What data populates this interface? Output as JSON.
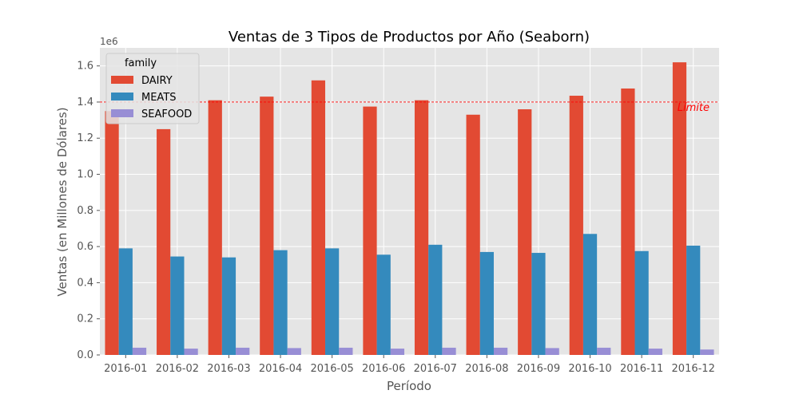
{
  "chart_data": {
    "type": "bar",
    "title": "Ventas de 3 Tipos de Productos por Año (Seaborn)",
    "xlabel": "Período",
    "ylabel": "Ventas (en Millones de Dólares)",
    "y_offset_label": "1e6",
    "ylim": [
      0,
      1.7
    ],
    "yticks": [
      0.0,
      0.2,
      0.4,
      0.6,
      0.8,
      1.0,
      1.2,
      1.4,
      1.6
    ],
    "ytick_labels": [
      "0.0",
      "0.2",
      "0.4",
      "0.6",
      "0.8",
      "1.0",
      "1.2",
      "1.4",
      "1.6"
    ],
    "grid": true,
    "categories": [
      "2016-01",
      "2016-02",
      "2016-03",
      "2016-04",
      "2016-05",
      "2016-06",
      "2016-07",
      "2016-08",
      "2016-09",
      "2016-10",
      "2016-11",
      "2016-12"
    ],
    "legend": {
      "title": "family",
      "position": "top-left"
    },
    "series": [
      {
        "name": "DAIRY",
        "color": "#E24A33",
        "values": [
          1.35,
          1.25,
          1.41,
          1.43,
          1.52,
          1.375,
          1.41,
          1.33,
          1.36,
          1.435,
          1.475,
          1.62
        ]
      },
      {
        "name": "MEATS",
        "color": "#348ABD",
        "values": [
          0.59,
          0.545,
          0.54,
          0.58,
          0.59,
          0.555,
          0.61,
          0.57,
          0.565,
          0.67,
          0.575,
          0.605
        ]
      },
      {
        "name": "SEAFOOD",
        "color": "#988ED5",
        "values": [
          0.04,
          0.035,
          0.04,
          0.038,
          0.04,
          0.035,
          0.04,
          0.04,
          0.038,
          0.04,
          0.035,
          0.03
        ]
      }
    ],
    "reference_line": {
      "y": 1.4,
      "label": "Límite",
      "color": "#ff0000",
      "style": "dashed"
    }
  }
}
